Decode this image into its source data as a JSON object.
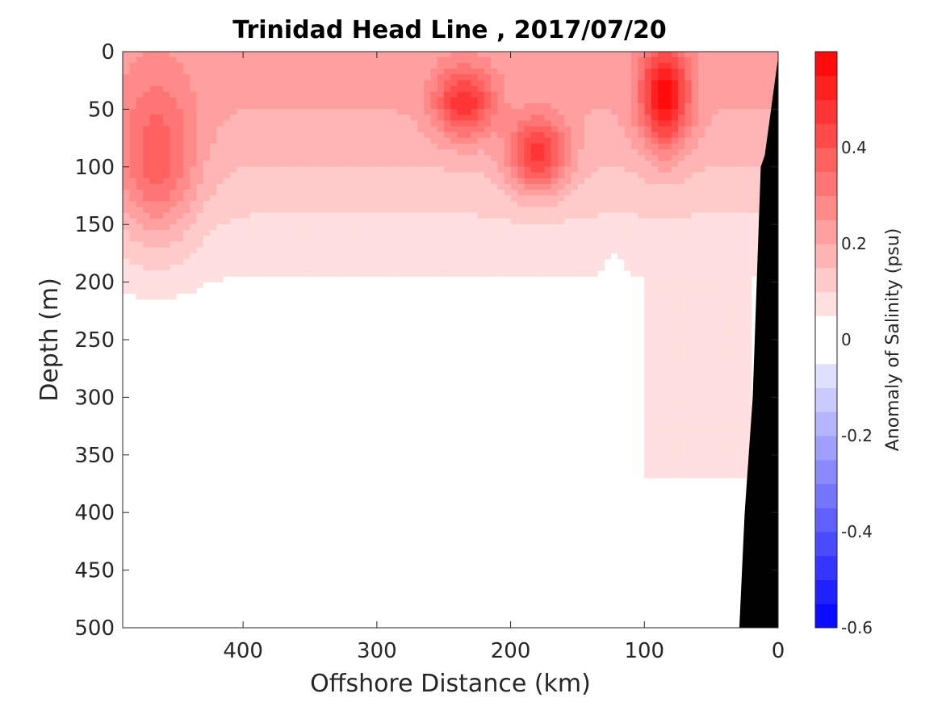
{
  "chart_data": {
    "type": "heatmap",
    "subtype": "filled-contour section",
    "title": "Trinidad Head Line , 2017/07/20",
    "xlabel": "Offshore Distance (km)",
    "ylabel": "Depth (m)",
    "colorbar_label": "Anomaly of Salinity (psu)",
    "xlim": [
      490,
      0
    ],
    "x_direction": "reversed",
    "ylim": [
      0,
      500
    ],
    "y_direction": "reversed (depth increases downward)",
    "x_ticks": [
      400,
      300,
      200,
      100,
      0
    ],
    "y_ticks": [
      0,
      50,
      100,
      150,
      200,
      250,
      300,
      350,
      400,
      450,
      500
    ],
    "colorbar_range": [
      -0.6,
      0.6
    ],
    "colorbar_step": 0.05,
    "colorbar_ticks": [
      0.4,
      0.2,
      0,
      -0.2,
      -0.4,
      -0.6
    ],
    "colormap": {
      "negative": "#0000ff",
      "zero": "#ffffff",
      "positive": "#ff0000"
    },
    "bathymetry_color": "#000000",
    "bathymetry": [
      [
        0,
        5
      ],
      [
        10,
        90
      ],
      [
        13,
        100
      ],
      [
        19,
        300
      ],
      [
        25,
        400
      ],
      [
        29,
        500
      ]
    ],
    "grid": false,
    "features": [
      {
        "name": "surface salinity max near 235 km",
        "x": 235,
        "y": 45,
        "value": 0.45,
        "rx": 22,
        "ry": 30
      },
      {
        "name": "surface salinity max near 180 km",
        "x": 180,
        "y": 90,
        "value": 0.45,
        "rx": 22,
        "ry": 32
      },
      {
        "name": "nearshore salinity max near 85 km",
        "x": 85,
        "y": 40,
        "value": 0.55,
        "rx": 18,
        "ry": 45
      },
      {
        "name": "offshore salinity max near 465 km",
        "x": 465,
        "y": 100,
        "value": 0.35,
        "rx": 30,
        "ry": 70
      },
      {
        "name": "fresh anomaly near 120 km",
        "x": 122,
        "y": 240,
        "value": -0.05,
        "rx": 8,
        "ry": 50
      },
      {
        "name": "fresh anomaly near 440 km",
        "x": 440,
        "y": 430,
        "value": -0.05,
        "rx": 15,
        "ry": 45
      }
    ]
  }
}
